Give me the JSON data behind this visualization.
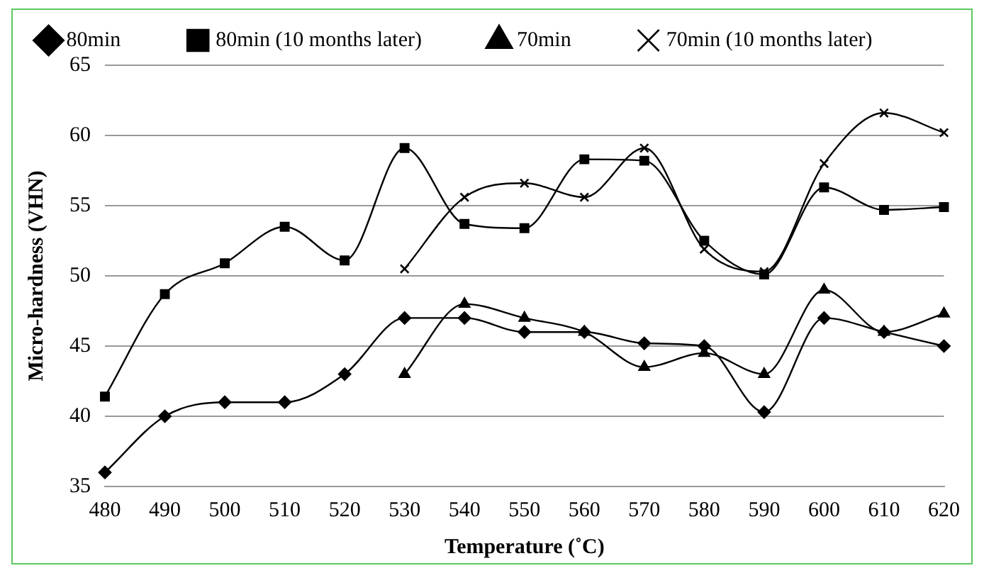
{
  "chart_data": {
    "type": "line",
    "xlabel": "Temperature (˚C)",
    "ylabel": "Micro-hardness (VHN)",
    "categories": [
      "480",
      "490",
      "500",
      "510",
      "520",
      "530",
      "540",
      "550",
      "560",
      "570",
      "580",
      "590",
      "600",
      "610",
      "620"
    ],
    "series": [
      {
        "name": "80min",
        "color": "#000000",
        "marker": "diamond",
        "values": [
          36,
          40,
          41,
          41,
          43,
          47,
          47,
          46,
          46,
          45.2,
          45,
          40.3,
          47,
          46,
          45
        ]
      },
      {
        "name": "80min (10 months later)",
        "color": "#000000",
        "marker": "square",
        "values": [
          41.4,
          48.7,
          50.9,
          53.5,
          51.1,
          59.1,
          53.7,
          53.4,
          58.3,
          58.2,
          52.5,
          50.1,
          56.3,
          54.7,
          54.9
        ]
      },
      {
        "name": "70min",
        "color": "#000000",
        "marker": "triangle",
        "values": [
          null,
          null,
          null,
          null,
          null,
          43,
          48,
          47,
          46,
          43.5,
          44.5,
          43,
          49,
          46,
          47.3
        ]
      },
      {
        "name": "70min (10 months later)",
        "color": "#000000",
        "marker": "cross",
        "values": [
          null,
          null,
          null,
          null,
          null,
          50.5,
          55.6,
          56.6,
          55.6,
          59.1,
          51.9,
          50.3,
          58,
          61.6,
          60.2
        ]
      }
    ],
    "ylim": [
      35,
      65
    ],
    "yticks": [
      35,
      40,
      45,
      50,
      55,
      60,
      65
    ],
    "grid": "y",
    "legend": "top",
    "line_style": "solid"
  }
}
